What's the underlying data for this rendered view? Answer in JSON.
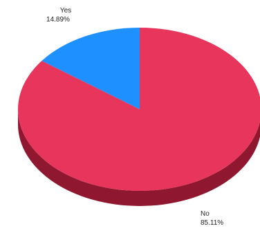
{
  "chart_data": {
    "type": "pie",
    "style": "3d",
    "title": "",
    "slices": [
      {
        "label": "Yes",
        "value": 14.89,
        "value_label": "14.89%",
        "color": "#1e90ff",
        "side_color": "#0f5aa8"
      },
      {
        "label": "No",
        "value": 85.11,
        "value_label": "85.11%",
        "color": "#e8355c",
        "side_color": "#8f1830"
      }
    ],
    "legend": "none"
  }
}
